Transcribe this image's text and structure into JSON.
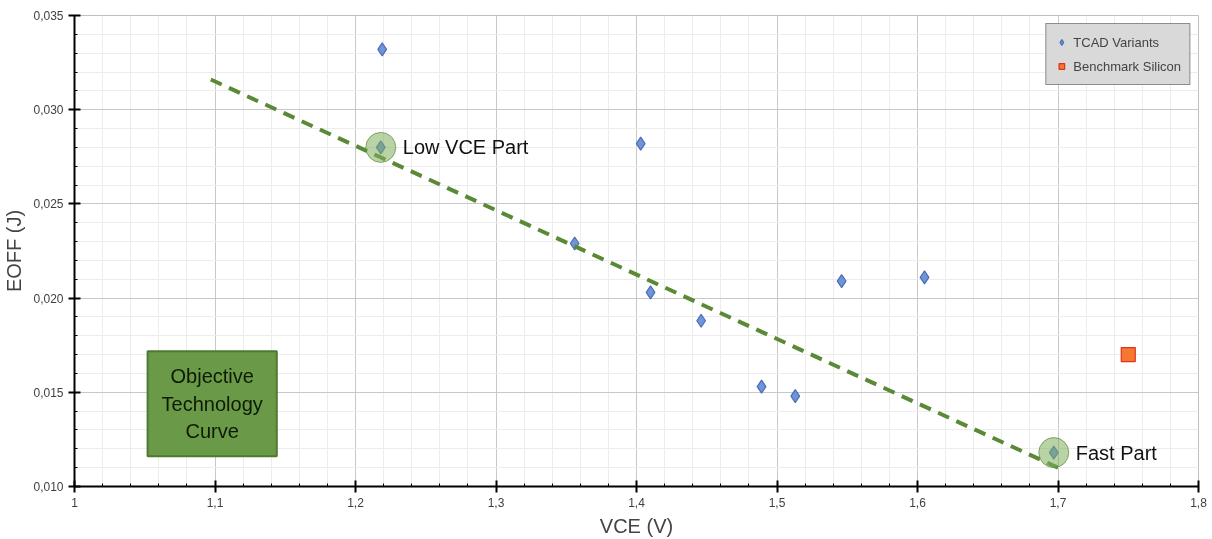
{
  "chart_data": {
    "type": "scatter",
    "xlabel": "VCE (V)",
    "ylabel": "EOFF (J)",
    "xlim": [
      1,
      1.8
    ],
    "ylim": [
      0.01,
      0.035
    ],
    "xticks": [
      1,
      {
        "value": 1.1,
        "label": "1,1"
      },
      {
        "value": 1.2,
        "label": "1,2"
      },
      {
        "value": 1.3,
        "label": "1,3"
      },
      {
        "value": 1.4,
        "label": "1,4"
      },
      {
        "value": 1.5,
        "label": "1,5"
      },
      {
        "value": 1.6,
        "label": "1,6"
      },
      {
        "value": 1.7,
        "label": "1,7"
      },
      {
        "value": 1.8,
        "label": "1,8"
      }
    ],
    "yticks": [
      {
        "value": 0.01,
        "label": "0,010"
      },
      {
        "value": 0.015,
        "label": "0,015"
      },
      {
        "value": 0.02,
        "label": "0,020"
      },
      {
        "value": 0.025,
        "label": "0,025"
      },
      {
        "value": 0.03,
        "label": "0,030"
      },
      {
        "value": 0.035,
        "label": "0,035"
      }
    ],
    "grid": true,
    "legend": "top right",
    "series": [
      {
        "name": "TCAD Variants",
        "marker": "diamond",
        "color": "#6f95d8",
        "x": [
          1.219,
          1.218,
          1.356,
          1.403,
          1.41,
          1.446,
          1.489,
          1.513,
          1.546,
          1.605,
          1.697
        ],
        "values": [
          0.0332,
          0.028,
          0.0229,
          0.0282,
          0.0203,
          0.0188,
          0.0153,
          0.0148,
          0.0209,
          0.0211,
          0.0118
        ]
      },
      {
        "name": "Benchmark Silicon",
        "marker": "square",
        "color": "#f4782f",
        "x": [
          1.75
        ],
        "values": [
          0.017
        ]
      },
      {
        "type": "line",
        "line_style": "dashed",
        "color": "#5a8a36",
        "x": [
          1.097,
          1.7
        ],
        "values": [
          0.0316,
          0.011
        ]
      }
    ],
    "annotations": [
      {
        "text": "Low VCE Part",
        "x": 1.218,
        "y": 0.028
      },
      {
        "text": "Fast Part",
        "x": 1.697,
        "y": 0.0118
      },
      "Objective\nTechnology\nCurve"
    ]
  }
}
